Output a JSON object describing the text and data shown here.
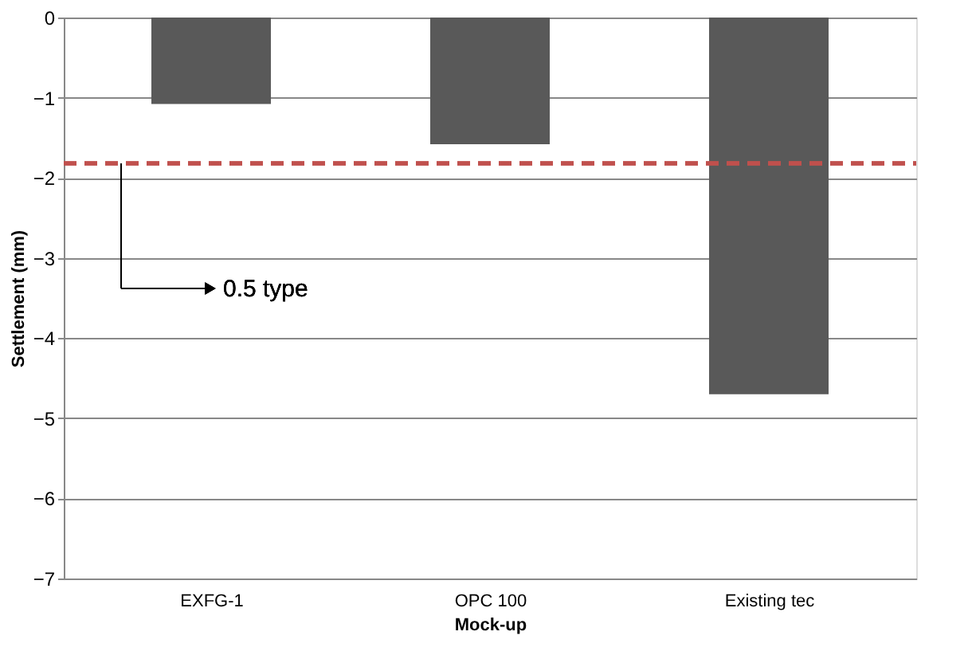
{
  "chart_data": {
    "type": "bar",
    "xlabel": "Mock-up",
    "ylabel": "Settlement (mm)",
    "categories": [
      "EXFG-1",
      "OPC 100",
      "Existing tec"
    ],
    "values": [
      -1.08,
      -1.58,
      -4.7
    ],
    "color": "#595959",
    "ylim": [
      -7,
      0
    ],
    "yticks": [
      -7,
      -6,
      -5,
      -4,
      -3,
      -2,
      -1,
      0
    ],
    "grid": "y",
    "ref_lines": [
      {
        "axis": "y",
        "value": -1.82,
        "color": "#c0504d",
        "line_style": "dashed"
      }
    ],
    "annotations": [
      "0.5 type"
    ]
  }
}
